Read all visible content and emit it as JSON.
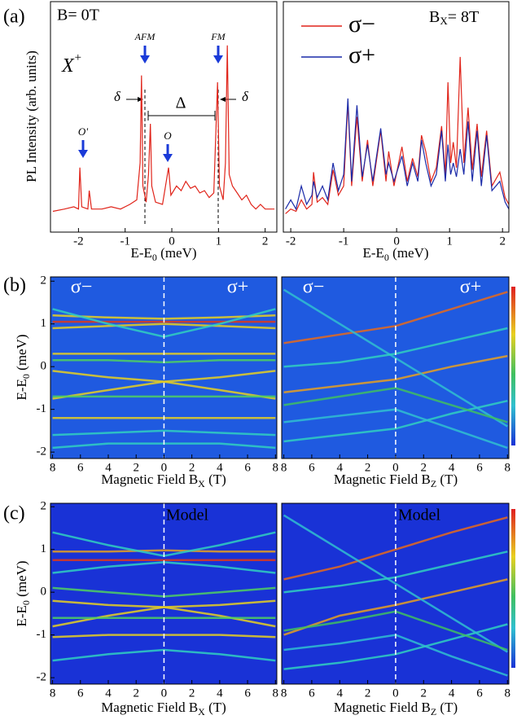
{
  "chart_data": [
    {
      "type": "line",
      "panel_label": "(a)",
      "ylabel": "PL Intensity (arb. units)",
      "xlabel": "E-E",
      "xlabel_sub": "0",
      "xlabel_unit": " (meV)",
      "field": "B= 0T",
      "exciton": "X",
      "exciton_sup": "+",
      "annotations": [
        "AFM",
        "FM",
        "δ",
        "δ",
        "Δ",
        "O'",
        "O"
      ],
      "xlim": [
        -2.6,
        2.25
      ],
      "xticks": [
        -2,
        -1,
        0,
        1,
        2
      ],
      "ylim": [
        0,
        1
      ],
      "x": [
        -2.55,
        -2.3,
        -2.1,
        -2.0,
        -1.97,
        -1.93,
        -1.8,
        -1.77,
        -1.72,
        -1.5,
        -1.3,
        -1.1,
        -0.9,
        -0.75,
        -0.68,
        -0.65,
        -0.62,
        -0.55,
        -0.5,
        -0.46,
        -0.43,
        -0.35,
        -0.2,
        -0.07,
        -0.02,
        0.1,
        0.2,
        0.3,
        0.4,
        0.5,
        0.6,
        0.7,
        0.8,
        0.9,
        0.98,
        1.02,
        1.1,
        1.15,
        1.19,
        1.23,
        1.3,
        1.4,
        1.5,
        1.6,
        1.7,
        1.8,
        1.9,
        2.0,
        2.2
      ],
      "series": [
        {
          "color": "#e0241a",
          "values": [
            0.09,
            0.1,
            0.11,
            0.1,
            0.28,
            0.11,
            0.1,
            0.18,
            0.1,
            0.1,
            0.11,
            0.1,
            0.12,
            0.14,
            0.3,
            0.68,
            0.2,
            0.13,
            0.25,
            0.47,
            0.2,
            0.13,
            0.12,
            0.28,
            0.16,
            0.2,
            0.18,
            0.22,
            0.19,
            0.2,
            0.17,
            0.18,
            0.15,
            0.17,
            0.65,
            0.2,
            0.14,
            0.3,
            0.81,
            0.25,
            0.2,
            0.17,
            0.14,
            0.16,
            0.12,
            0.1,
            0.12,
            0.1,
            0.1
          ]
        }
      ]
    },
    {
      "type": "line",
      "field": "B",
      "field_sub": "X",
      "field_rest": "= 8T",
      "legend": "upper left",
      "xlabel": "E-E",
      "xlabel_sub": "0",
      "xlabel_unit": " (meV)",
      "xlim": [
        -2.14,
        2.12
      ],
      "xticks": [
        -2,
        -1,
        0,
        1,
        2
      ],
      "ylim": [
        0,
        1
      ],
      "x": [
        -2.1,
        -2.0,
        -1.9,
        -1.8,
        -1.7,
        -1.6,
        -1.57,
        -1.5,
        -1.4,
        -1.3,
        -1.2,
        -1.1,
        -1.0,
        -0.92,
        -0.85,
        -0.75,
        -0.65,
        -0.55,
        -0.45,
        -0.3,
        -0.2,
        -0.15,
        -0.05,
        0.1,
        0.2,
        0.3,
        0.4,
        0.47,
        0.55,
        0.65,
        0.75,
        0.85,
        0.92,
        0.97,
        1.02,
        1.07,
        1.13,
        1.2,
        1.27,
        1.35,
        1.43,
        1.52,
        1.6,
        1.7,
        1.8,
        1.95,
        2.05,
        2.12
      ],
      "series": [
        {
          "name": "σ−",
          "color": "#e0241a",
          "values": [
            0.08,
            0.1,
            0.09,
            0.14,
            0.1,
            0.12,
            0.26,
            0.13,
            0.15,
            0.12,
            0.27,
            0.16,
            0.2,
            0.56,
            0.2,
            0.5,
            0.22,
            0.4,
            0.2,
            0.44,
            0.22,
            0.35,
            0.2,
            0.37,
            0.22,
            0.32,
            0.24,
            0.42,
            0.35,
            0.22,
            0.28,
            0.46,
            0.25,
            0.65,
            0.3,
            0.39,
            0.28,
            0.76,
            0.3,
            0.54,
            0.27,
            0.47,
            0.24,
            0.44,
            0.2,
            0.26,
            0.15,
            0.12
          ]
        },
        {
          "name": "σ+",
          "color": "#1a2aa8",
          "values": [
            0.1,
            0.14,
            0.1,
            0.2,
            0.12,
            0.16,
            0.22,
            0.15,
            0.2,
            0.14,
            0.3,
            0.18,
            0.25,
            0.58,
            0.22,
            0.55,
            0.24,
            0.38,
            0.22,
            0.45,
            0.25,
            0.3,
            0.22,
            0.33,
            0.2,
            0.3,
            0.22,
            0.4,
            0.3,
            0.2,
            0.25,
            0.44,
            0.22,
            0.38,
            0.25,
            0.3,
            0.24,
            0.36,
            0.25,
            0.48,
            0.22,
            0.44,
            0.2,
            0.42,
            0.18,
            0.22,
            0.13,
            0.1
          ]
        }
      ]
    },
    {
      "type": "map",
      "panel_label": "(b)",
      "ylabel": "E-E",
      "ylabel_sub": "0",
      "ylabel_unit": " (meV)",
      "xlabel": "Magnetic Field  B",
      "xlabel_sub": "X",
      "xlabel_unit": " (T)",
      "labels": [
        "σ−",
        "σ+"
      ],
      "background": "#1f5ae0",
      "xlim": [
        -8.15,
        8.1
      ],
      "xticks": [
        {
          "value": -8,
          "label": "8"
        },
        {
          "value": -6,
          "label": "6"
        },
        {
          "value": -4,
          "label": "4"
        },
        {
          "value": -2,
          "label": "2"
        },
        0,
        2,
        4,
        6,
        8
      ],
      "ylim": [
        -2.15,
        2.1
      ],
      "yticks": [
        -2,
        -1,
        0,
        1,
        2
      ],
      "curves": [
        {
          "color": "#e03a1a",
          "x": [
            -8,
            -4,
            0,
            4,
            8
          ],
          "y": [
            1.05,
            1.05,
            1.05,
            1.05,
            1.05
          ]
        },
        {
          "color": "#e8d020",
          "x": [
            -8,
            -4,
            0,
            4,
            8
          ],
          "y": [
            1.2,
            1.15,
            1.12,
            1.15,
            1.2
          ]
        },
        {
          "color": "#e8d020",
          "x": [
            -8,
            -4,
            0,
            4,
            8
          ],
          "y": [
            0.9,
            0.95,
            1.0,
            0.95,
            0.9
          ]
        },
        {
          "color": "#30d0c0",
          "x": [
            -8,
            -4,
            0,
            4,
            8
          ],
          "y": [
            1.35,
            1.0,
            0.7,
            1.0,
            1.35
          ]
        },
        {
          "color": "#e8d020",
          "x": [
            -8,
            -4,
            0,
            4,
            8
          ],
          "y": [
            0.3,
            0.3,
            0.3,
            0.3,
            0.3
          ]
        },
        {
          "color": "#50d060",
          "x": [
            -8,
            -4,
            0,
            4,
            8
          ],
          "y": [
            0.15,
            0.15,
            0.1,
            0.15,
            0.15
          ]
        },
        {
          "color": "#e8d020",
          "x": [
            -8,
            -4,
            0,
            4,
            8
          ],
          "y": [
            -0.1,
            -0.25,
            -0.35,
            -0.25,
            -0.1
          ]
        },
        {
          "color": "#e8d020",
          "x": [
            -8,
            -4,
            0,
            4,
            8
          ],
          "y": [
            -0.75,
            -0.55,
            -0.35,
            -0.55,
            -0.75
          ]
        },
        {
          "color": "#50d060",
          "x": [
            -8,
            -4,
            0,
            4,
            8
          ],
          "y": [
            -0.7,
            -0.7,
            -0.7,
            -0.7,
            -0.7
          ]
        },
        {
          "color": "#e8d020",
          "x": [
            -8,
            -4,
            0,
            4,
            8
          ],
          "y": [
            -1.2,
            -1.2,
            -1.2,
            -1.2,
            -1.2
          ]
        },
        {
          "color": "#30d0c0",
          "x": [
            -8,
            -4,
            0,
            4,
            8
          ],
          "y": [
            -1.6,
            -1.55,
            -1.5,
            -1.55,
            -1.6
          ]
        },
        {
          "color": "#30d0c0",
          "x": [
            -8,
            -4,
            0,
            4,
            8
          ],
          "y": [
            -1.9,
            -1.8,
            -1.8,
            -1.8,
            -1.9
          ]
        }
      ]
    },
    {
      "type": "map",
      "xlabel": "Magnetic Field  B",
      "xlabel_sub": "Z",
      "xlabel_unit": " (T)",
      "labels": [
        "σ−",
        "σ+"
      ],
      "background": "#1f5ae0",
      "xlim": [
        -8.15,
        8.1
      ],
      "xticks": [
        {
          "value": -8,
          "label": "8"
        },
        {
          "value": -6,
          "label": "6"
        },
        {
          "value": -4,
          "label": "4"
        },
        {
          "value": -2,
          "label": "2"
        },
        0,
        2,
        4,
        6,
        8
      ],
      "ylim": [
        -2.15,
        2.1
      ],
      "curves": [
        {
          "color": "#e86a1a",
          "x": [
            -8,
            -4,
            0,
            4,
            8
          ],
          "y": [
            0.55,
            0.75,
            0.95,
            1.35,
            1.75
          ]
        },
        {
          "color": "#e8a020",
          "x": [
            -8,
            -4,
            0,
            4,
            8
          ],
          "y": [
            -0.6,
            -0.45,
            -0.3,
            0.0,
            0.25
          ]
        },
        {
          "color": "#30d0c0",
          "x": [
            -8,
            -4,
            0,
            4,
            8
          ],
          "y": [
            -1.75,
            -1.6,
            -1.45,
            -1.1,
            -0.8
          ]
        },
        {
          "color": "#30c0d0",
          "x": [
            -8,
            -4,
            0,
            4,
            8
          ],
          "y": [
            1.8,
            1.0,
            0.2,
            -0.6,
            -1.4
          ]
        },
        {
          "color": "#30d0c0",
          "x": [
            -8,
            -4,
            0,
            4,
            8
          ],
          "y": [
            0.0,
            0.1,
            0.3,
            0.6,
            0.9
          ]
        },
        {
          "color": "#40c060",
          "x": [
            -8,
            -4,
            0,
            4,
            8
          ],
          "y": [
            -0.9,
            -0.7,
            -0.5,
            -0.9,
            -1.3
          ]
        },
        {
          "color": "#30c0d0",
          "x": [
            -8,
            -4,
            0,
            4,
            8
          ],
          "y": [
            -1.3,
            -1.15,
            -1.0,
            -1.45,
            -1.9
          ]
        }
      ]
    },
    {
      "type": "map",
      "panel_label": "(c)",
      "ylabel": "E-E",
      "ylabel_sub": "0",
      "ylabel_unit": " (meV)",
      "xlabel": "Magnetic Field  B",
      "xlabel_sub": "X",
      "xlabel_unit": " (T)",
      "labels": [
        "Model"
      ],
      "background": "#1932d6",
      "xlim": [
        -8.15,
        8.1
      ],
      "xticks": [
        {
          "value": -8,
          "label": "8"
        },
        {
          "value": -6,
          "label": "6"
        },
        {
          "value": -4,
          "label": "4"
        },
        {
          "value": -2,
          "label": "2"
        },
        0,
        2,
        4,
        6,
        8
      ],
      "ylim": [
        -2.15,
        2.08
      ],
      "yticks": [
        -2,
        -1,
        0,
        1,
        2
      ],
      "curves": [
        {
          "color": "#e03a1a",
          "x": [
            -8,
            -4,
            0,
            4,
            8
          ],
          "y": [
            0.75,
            0.75,
            0.75,
            0.75,
            0.75
          ]
        },
        {
          "color": "#e8a020",
          "x": [
            -8,
            -4,
            0,
            4,
            8
          ],
          "y": [
            0.95,
            0.95,
            0.98,
            0.95,
            0.95
          ]
        },
        {
          "color": "#30d0c0",
          "x": [
            -8,
            -4,
            0,
            4,
            8
          ],
          "y": [
            1.4,
            1.1,
            0.85,
            1.1,
            1.4
          ]
        },
        {
          "color": "#30d0c0",
          "x": [
            -8,
            -4,
            0,
            4,
            8
          ],
          "y": [
            0.45,
            0.6,
            0.7,
            0.6,
            0.45
          ]
        },
        {
          "color": "#50d060",
          "x": [
            -8,
            -4,
            0,
            4,
            8
          ],
          "y": [
            0.1,
            0.0,
            -0.1,
            0.0,
            0.1
          ]
        },
        {
          "color": "#e8d020",
          "x": [
            -8,
            -4,
            0,
            4,
            8
          ],
          "y": [
            -0.2,
            -0.3,
            -0.35,
            -0.3,
            -0.2
          ]
        },
        {
          "color": "#e8d020",
          "x": [
            -8,
            -4,
            0,
            4,
            8
          ],
          "y": [
            -0.8,
            -0.55,
            -0.35,
            -0.55,
            -0.8
          ]
        },
        {
          "color": "#50d060",
          "x": [
            -8,
            -4,
            0,
            4,
            8
          ],
          "y": [
            -0.6,
            -0.6,
            -0.6,
            -0.6,
            -0.6
          ]
        },
        {
          "color": "#e8d020",
          "x": [
            -8,
            -4,
            0,
            4,
            8
          ],
          "y": [
            -1.05,
            -1.0,
            -1.0,
            -1.0,
            -1.05
          ]
        },
        {
          "color": "#30d0c0",
          "x": [
            -8,
            -4,
            0,
            4,
            8
          ],
          "y": [
            -1.6,
            -1.45,
            -1.35,
            -1.45,
            -1.6
          ]
        }
      ]
    },
    {
      "type": "map",
      "xlabel": "Magnetic Field  B",
      "xlabel_sub": "Z",
      "xlabel_unit": " (T)",
      "labels": [
        "Model"
      ],
      "background": "#1932d6",
      "xlim": [
        -8.15,
        8.1
      ],
      "xticks": [
        {
          "value": -8,
          "label": "8"
        },
        {
          "value": -6,
          "label": "6"
        },
        {
          "value": -4,
          "label": "4"
        },
        {
          "value": -2,
          "label": "2"
        },
        0,
        2,
        4,
        6,
        8
      ],
      "ylim": [
        -2.15,
        2.08
      ],
      "curves": [
        {
          "color": "#e86a1a",
          "x": [
            -8,
            -4,
            0,
            4,
            8
          ],
          "y": [
            0.3,
            0.6,
            1.0,
            1.4,
            1.75
          ]
        },
        {
          "color": "#e8a020",
          "x": [
            -8,
            -4,
            0,
            4,
            8
          ],
          "y": [
            -1.0,
            -0.55,
            -0.3,
            0.0,
            0.3
          ]
        },
        {
          "color": "#30d0c0",
          "x": [
            -8,
            -4,
            0,
            4,
            8
          ],
          "y": [
            -1.8,
            -1.65,
            -1.45,
            -1.1,
            -0.75
          ]
        },
        {
          "color": "#30c0d0",
          "x": [
            -8,
            -4,
            0,
            4,
            8
          ],
          "y": [
            1.8,
            1.0,
            0.2,
            -0.6,
            -1.4
          ]
        },
        {
          "color": "#30d0c0",
          "x": [
            -8,
            -4,
            0,
            4,
            8
          ],
          "y": [
            0.0,
            0.15,
            0.35,
            0.65,
            0.95
          ]
        },
        {
          "color": "#40c060",
          "x": [
            -8,
            -4,
            0,
            4,
            8
          ],
          "y": [
            -0.9,
            -0.7,
            -0.45,
            -0.9,
            -1.35
          ]
        },
        {
          "color": "#30c0d0",
          "x": [
            -8,
            -4,
            0,
            4,
            8
          ],
          "y": [
            -1.35,
            -1.2,
            -1.0,
            -1.5,
            -1.95
          ]
        }
      ]
    }
  ]
}
